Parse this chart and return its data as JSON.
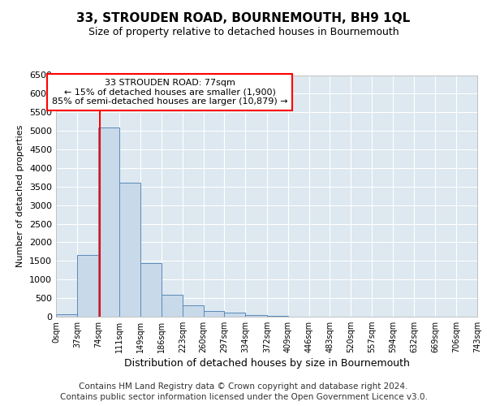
{
  "title": "33, STROUDEN ROAD, BOURNEMOUTH, BH9 1QL",
  "subtitle": "Size of property relative to detached houses in Bournemouth",
  "xlabel": "Distribution of detached houses by size in Bournemouth",
  "ylabel": "Number of detached properties",
  "footer_line1": "Contains HM Land Registry data © Crown copyright and database right 2024.",
  "footer_line2": "Contains public sector information licensed under the Open Government Licence v3.0.",
  "annotation_line1": "33 STROUDEN ROAD: 77sqm",
  "annotation_line2": "← 15% of detached houses are smaller (1,900)",
  "annotation_line3": "85% of semi-detached houses are larger (10,879) →",
  "bar_edges": [
    0,
    37,
    74,
    111,
    149,
    186,
    223,
    260,
    297,
    334,
    372,
    409,
    446,
    483,
    520,
    557,
    594,
    632,
    669,
    706,
    743
  ],
  "bar_heights": [
    60,
    1650,
    5100,
    3600,
    1450,
    600,
    300,
    160,
    100,
    50,
    20,
    10,
    5,
    2,
    1,
    1,
    1,
    0,
    0,
    0
  ],
  "bar_color": "#c8d9ea",
  "bar_edge_color": "#5a8ab8",
  "red_line_x": 77,
  "ylim": [
    0,
    6500
  ],
  "yticks": [
    0,
    500,
    1000,
    1500,
    2000,
    2500,
    3000,
    3500,
    4000,
    4500,
    5000,
    5500,
    6000,
    6500
  ],
  "background_color": "#ffffff",
  "plot_bg_color": "#dde8f0",
  "grid_color": "#ffffff",
  "title_fontsize": 11,
  "subtitle_fontsize": 9,
  "footer_fontsize": 7.5
}
